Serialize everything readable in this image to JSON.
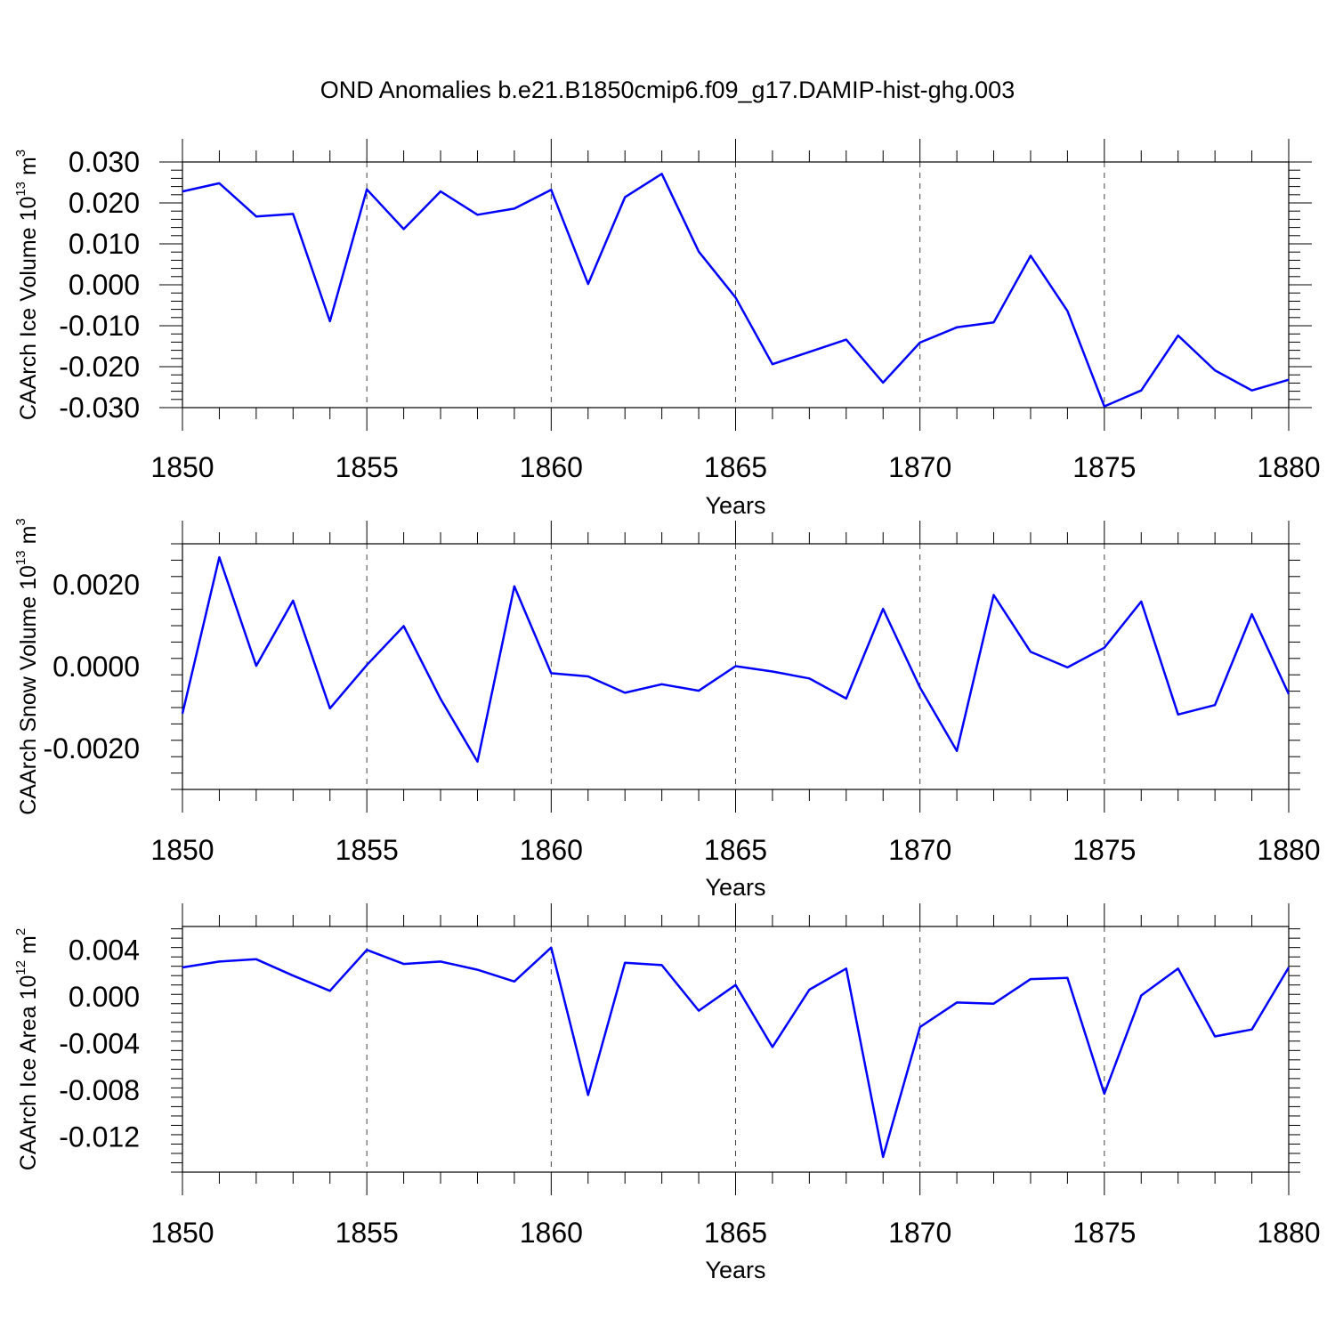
{
  "title": "OND Anomalies b.e21.B1850cmip6.f09_g17.DAMIP-hist-ghg.003",
  "colors": {
    "line": "#0000ff"
  },
  "chart_data": [
    {
      "type": "line",
      "xlabel": "Years",
      "ylabel": {
        "text": "CAArch Ice Volume 10",
        "exp": "13",
        "unit": " m",
        "unit_exp": "3"
      },
      "xlim": [
        1850,
        1880
      ],
      "ylim": [
        -0.03,
        0.03
      ],
      "yticks": [
        0.03,
        0.02,
        0.01,
        0.0,
        -0.01,
        -0.02,
        -0.03
      ],
      "ytick_labels": [
        "0.030",
        "0.020",
        "0.010",
        "0.000",
        "-0.010",
        "-0.020",
        "-0.030"
      ],
      "xticks": [
        1850,
        1855,
        1860,
        1865,
        1870,
        1875,
        1880
      ],
      "xtick_labels": [
        "1850",
        "1855",
        "1860",
        "1865",
        "1870",
        "1875",
        "1880"
      ],
      "grid": "x-dashed",
      "x": [
        1850,
        1851,
        1852,
        1853,
        1854,
        1855,
        1856,
        1857,
        1858,
        1859,
        1860,
        1861,
        1862,
        1863,
        1864,
        1865,
        1866,
        1867,
        1868,
        1869,
        1870,
        1871,
        1872,
        1873,
        1874,
        1875,
        1876,
        1877,
        1878,
        1879,
        1880
      ],
      "values": [
        0.0228,
        0.0248,
        0.0167,
        0.0173,
        -0.0089,
        0.0233,
        0.0136,
        0.0228,
        0.0171,
        0.0186,
        0.0232,
        0.0002,
        0.0214,
        0.0271,
        0.0081,
        -0.0031,
        -0.0194,
        -0.0164,
        -0.0134,
        -0.0239,
        -0.0141,
        -0.0104,
        -0.0092,
        0.0071,
        -0.0064,
        -0.0297,
        -0.0258,
        -0.0124,
        -0.0209,
        -0.0258,
        -0.0232
      ]
    },
    {
      "type": "line",
      "xlabel": "Years",
      "ylabel": {
        "text": "CAArch Snow Volume 10",
        "exp": "13",
        "unit": " m",
        "unit_exp": "3"
      },
      "xlim": [
        1850,
        1880
      ],
      "ylim": [
        -0.003,
        0.003
      ],
      "yticks": [
        0.002,
        0.0,
        -0.002
      ],
      "ytick_labels": [
        "0.0020",
        "0.0000",
        "-0.0020"
      ],
      "xticks": [
        1850,
        1855,
        1860,
        1865,
        1870,
        1875,
        1880
      ],
      "xtick_labels": [
        "1850",
        "1855",
        "1860",
        "1865",
        "1870",
        "1875",
        "1880"
      ],
      "grid": "x-dashed",
      "x": [
        1850,
        1851,
        1852,
        1853,
        1854,
        1855,
        1856,
        1857,
        1858,
        1859,
        1860,
        1861,
        1862,
        1863,
        1864,
        1865,
        1866,
        1867,
        1868,
        1869,
        1870,
        1871,
        1872,
        1873,
        1874,
        1875,
        1876,
        1877,
        1878,
        1879,
        1880
      ],
      "values": [
        -0.00115,
        0.00267,
        2e-05,
        0.00161,
        -0.00102,
        4e-05,
        0.00099,
        -0.00079,
        -0.00232,
        0.00196,
        -0.00016,
        -0.00024,
        -0.00064,
        -0.00043,
        -0.00059,
        1e-05,
        -0.00012,
        -0.00029,
        -0.00078,
        0.00141,
        -0.00051,
        -0.00206,
        0.00175,
        0.00036,
        -2e-05,
        0.00046,
        0.00159,
        -0.00117,
        -0.00094,
        0.00128,
        -0.00067
      ]
    },
    {
      "type": "line",
      "xlabel": "Years",
      "ylabel": {
        "text": "CAArch Ice Area 10",
        "exp": "12",
        "unit": " m",
        "unit_exp": "2"
      },
      "xlim": [
        1850,
        1880
      ],
      "ylim": [
        -0.015,
        0.006
      ],
      "yticks": [
        0.004,
        0.0,
        -0.004,
        -0.008,
        -0.012
      ],
      "ytick_labels": [
        "0.004",
        "0.000",
        "-0.004",
        "-0.008",
        "-0.012"
      ],
      "xticks": [
        1850,
        1855,
        1860,
        1865,
        1870,
        1875,
        1880
      ],
      "xtick_labels": [
        "1850",
        "1855",
        "1860",
        "1865",
        "1870",
        "1875",
        "1880"
      ],
      "grid": "x-dashed",
      "x": [
        1850,
        1851,
        1852,
        1853,
        1854,
        1855,
        1856,
        1857,
        1858,
        1859,
        1860,
        1861,
        1862,
        1863,
        1864,
        1865,
        1866,
        1867,
        1868,
        1869,
        1870,
        1871,
        1872,
        1873,
        1874,
        1875,
        1876,
        1877,
        1878,
        1879,
        1880
      ],
      "values": [
        0.0025,
        0.003,
        0.0032,
        0.0018,
        0.0005,
        0.004,
        0.0028,
        0.003,
        0.0023,
        0.0013,
        0.0042,
        -0.0084,
        0.0029,
        0.0027,
        -0.0012,
        0.001,
        -0.0043,
        0.0006,
        0.0024,
        -0.0137,
        -0.0026,
        -0.0005,
        -0.0006,
        0.0015,
        0.0016,
        -0.0083,
        0.0001,
        0.0024,
        -0.0034,
        -0.0028,
        0.0025
      ]
    }
  ]
}
